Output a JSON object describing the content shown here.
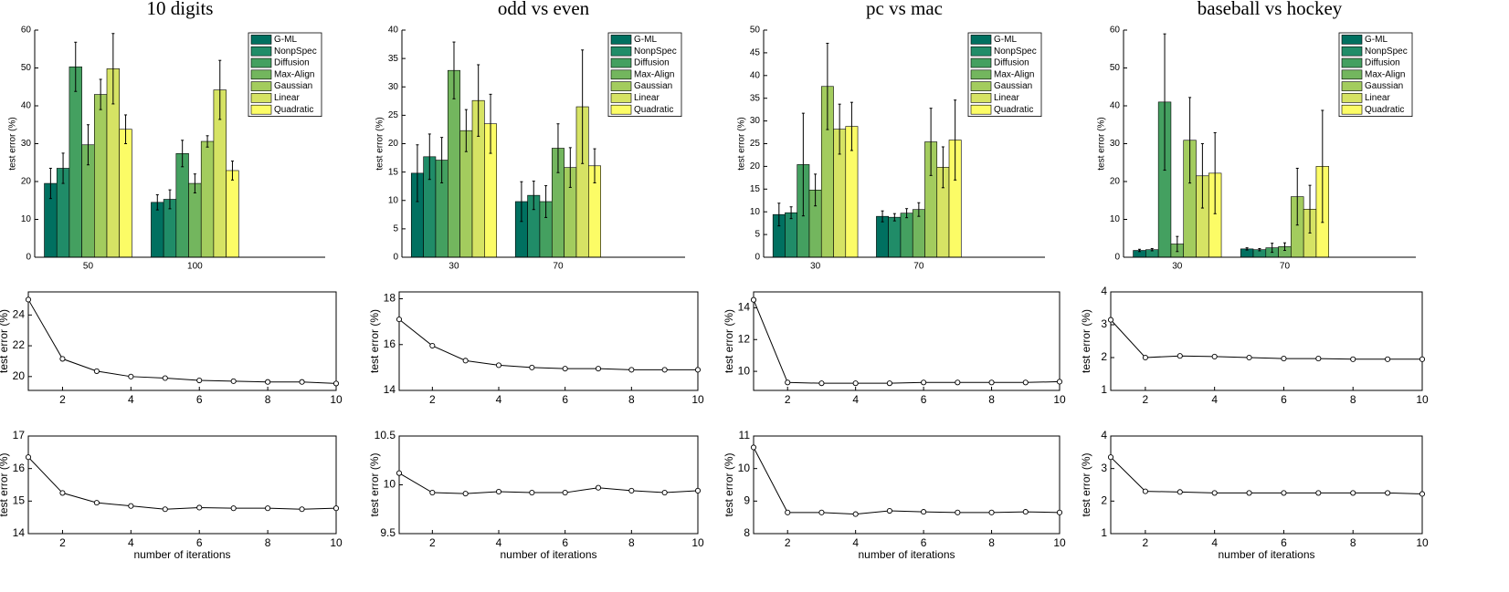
{
  "chart_data": [
    {
      "type": "bar",
      "title": "10 digits",
      "y_label": "test error (%)",
      "categories": [
        "50",
        "100"
      ],
      "ylim": [
        0,
        60
      ],
      "yticks": [
        0,
        10,
        20,
        30,
        40,
        50,
        60
      ],
      "legend": "upper right",
      "series": [
        {
          "name": "G-ML",
          "color": "#007060",
          "values": [
            19.5,
            14.5
          ],
          "errors": [
            4,
            2
          ]
        },
        {
          "name": "NonpSpec",
          "color": "#208c68",
          "values": [
            23.5,
            15.3
          ],
          "errors": [
            4,
            2.5
          ]
        },
        {
          "name": "Diffusion",
          "color": "#44a060",
          "values": [
            50.3,
            27.4
          ],
          "errors": [
            6.5,
            3.5
          ]
        },
        {
          "name": "Max-Align",
          "color": "#73b65e",
          "values": [
            29.7,
            19.5
          ],
          "errors": [
            5.3,
            2.5
          ]
        },
        {
          "name": "Gaussian",
          "color": "#a3cc5e",
          "values": [
            43,
            30.6
          ],
          "errors": [
            4,
            1.5
          ]
        },
        {
          "name": "Linear",
          "color": "#d6e364",
          "values": [
            49.8,
            44.2
          ],
          "errors": [
            9.3,
            7.8
          ]
        },
        {
          "name": "Quadratic",
          "color": "#fcfc66",
          "values": [
            33.8,
            22.9
          ],
          "errors": [
            3.8,
            2.5
          ]
        }
      ]
    },
    {
      "type": "bar",
      "title": "odd vs even",
      "y_label": "test error (%)",
      "categories": [
        "30",
        "70"
      ],
      "ylim": [
        0,
        40
      ],
      "yticks": [
        0,
        5,
        10,
        15,
        20,
        25,
        30,
        35,
        40
      ],
      "legend": "upper right",
      "series": [
        {
          "name": "G-ML",
          "color": "#007060",
          "values": [
            14.8,
            9.8
          ],
          "errors": [
            5,
            3.5
          ]
        },
        {
          "name": "NonpSpec",
          "color": "#208c68",
          "values": [
            17.7,
            10.9
          ],
          "errors": [
            4,
            2.5
          ]
        },
        {
          "name": "Diffusion",
          "color": "#44a060",
          "values": [
            17.1,
            9.8
          ],
          "errors": [
            4,
            2.8
          ]
        },
        {
          "name": "Max-Align",
          "color": "#73b65e",
          "values": [
            32.9,
            19.2
          ],
          "errors": [
            5,
            4.3
          ]
        },
        {
          "name": "Gaussian",
          "color": "#a3cc5e",
          "values": [
            22.3,
            15.8
          ],
          "errors": [
            3.7,
            3.5
          ]
        },
        {
          "name": "Linear",
          "color": "#d6e364",
          "values": [
            27.6,
            26.5
          ],
          "errors": [
            6.3,
            10
          ]
        },
        {
          "name": "Quadratic",
          "color": "#fcfc66",
          "values": [
            23.5,
            16.1
          ],
          "errors": [
            5.2,
            3
          ]
        }
      ]
    },
    {
      "type": "bar",
      "title": "pc vs mac",
      "y_label": "test error (%)",
      "categories": [
        "30",
        "70"
      ],
      "ylim": [
        0,
        50
      ],
      "yticks": [
        0,
        5,
        10,
        15,
        20,
        25,
        30,
        35,
        40,
        45,
        50
      ],
      "legend": "upper right",
      "series": [
        {
          "name": "G-ML",
          "color": "#007060",
          "values": [
            9.4,
            9
          ],
          "errors": [
            2.5,
            1.2
          ]
        },
        {
          "name": "NonpSpec",
          "color": "#208c68",
          "values": [
            9.8,
            8.8
          ],
          "errors": [
            1.3,
            0.8
          ]
        },
        {
          "name": "Diffusion",
          "color": "#44a060",
          "values": [
            20.4,
            9.7
          ],
          "errors": [
            11.3,
            1
          ]
        },
        {
          "name": "Max-Align",
          "color": "#73b65e",
          "values": [
            14.8,
            10.5
          ],
          "errors": [
            3.5,
            1.5
          ]
        },
        {
          "name": "Gaussian",
          "color": "#a3cc5e",
          "values": [
            37.6,
            25.4
          ],
          "errors": [
            9.5,
            7.4
          ]
        },
        {
          "name": "Linear",
          "color": "#d6e364",
          "values": [
            28.2,
            19.8
          ],
          "errors": [
            5.5,
            4.5
          ]
        },
        {
          "name": "Quadratic",
          "color": "#fcfc66",
          "values": [
            28.8,
            25.8
          ],
          "errors": [
            5.3,
            8.8
          ]
        }
      ]
    },
    {
      "type": "bar",
      "title": "baseball vs hockey",
      "y_label": "test error (%)",
      "categories": [
        "30",
        "70"
      ],
      "ylim": [
        0,
        60
      ],
      "yticks": [
        0,
        10,
        20,
        30,
        40,
        50,
        60
      ],
      "legend": "upper right",
      "series": [
        {
          "name": "G-ML",
          "color": "#007060",
          "values": [
            1.8,
            2.2
          ],
          "errors": [
            0.3,
            0.3
          ]
        },
        {
          "name": "NonpSpec",
          "color": "#208c68",
          "values": [
            2,
            2
          ],
          "errors": [
            0.3,
            0.3
          ]
        },
        {
          "name": "Diffusion",
          "color": "#44a060",
          "values": [
            41,
            2.5
          ],
          "errors": [
            18,
            1.2
          ]
        },
        {
          "name": "Max-Align",
          "color": "#73b65e",
          "values": [
            3.5,
            2.8
          ],
          "errors": [
            2,
            1
          ]
        },
        {
          "name": "Gaussian",
          "color": "#a3cc5e",
          "values": [
            30.9,
            16
          ],
          "errors": [
            11.3,
            7.5
          ]
        },
        {
          "name": "Linear",
          "color": "#d6e364",
          "values": [
            21.5,
            12.7
          ],
          "errors": [
            8.5,
            6.3
          ]
        },
        {
          "name": "Quadratic",
          "color": "#fcfc66",
          "values": [
            22.2,
            24
          ],
          "errors": [
            10.7,
            14.8
          ]
        }
      ]
    },
    {
      "type": "line",
      "y_label": "test error (%)",
      "x": [
        1,
        2,
        3,
        4,
        5,
        6,
        7,
        8,
        9,
        10
      ],
      "values": [
        25.0,
        21.15,
        20.35,
        20.0,
        19.9,
        19.75,
        19.7,
        19.65,
        19.65,
        19.55
      ],
      "color": "#000000",
      "marker": "o",
      "xlim": [
        1,
        10
      ],
      "xticks": [
        2,
        4,
        6,
        8,
        10
      ],
      "ylim": [
        19.1,
        25.5
      ],
      "yticks": [
        20,
        22,
        24
      ]
    },
    {
      "type": "line",
      "y_label": "test error (%)",
      "x": [
        1,
        2,
        3,
        4,
        5,
        6,
        7,
        8,
        9,
        10
      ],
      "values": [
        17.1,
        15.95,
        15.3,
        15.1,
        15.0,
        14.95,
        14.95,
        14.9,
        14.9,
        14.9
      ],
      "color": "#000000",
      "marker": "o",
      "xlim": [
        1,
        10
      ],
      "xticks": [
        2,
        4,
        6,
        8,
        10
      ],
      "ylim": [
        14,
        18.3
      ],
      "yticks": [
        14,
        16,
        18
      ]
    },
    {
      "type": "line",
      "y_label": "test error (%)",
      "x": [
        1,
        2,
        3,
        4,
        5,
        6,
        7,
        8,
        9,
        10
      ],
      "values": [
        14.5,
        9.3,
        9.25,
        9.25,
        9.25,
        9.3,
        9.3,
        9.3,
        9.3,
        9.35
      ],
      "color": "#000000",
      "marker": "o",
      "xlim": [
        1,
        10
      ],
      "xticks": [
        2,
        4,
        6,
        8,
        10
      ],
      "ylim": [
        8.8,
        15
      ],
      "yticks": [
        10,
        12,
        14
      ]
    },
    {
      "type": "line",
      "y_label": "test error (%)",
      "x": [
        1,
        2,
        3,
        4,
        5,
        6,
        7,
        8,
        9,
        10
      ],
      "values": [
        3.15,
        2.0,
        2.05,
        2.03,
        2.0,
        1.97,
        1.97,
        1.95,
        1.95,
        1.95
      ],
      "color": "#000000",
      "marker": "o",
      "xlim": [
        1,
        10
      ],
      "xticks": [
        2,
        4,
        6,
        8,
        10
      ],
      "ylim": [
        1,
        4
      ],
      "yticks": [
        1,
        2,
        3,
        4
      ]
    },
    {
      "type": "line",
      "y_label": "test error (%)",
      "x_label": "number of iterations",
      "x": [
        1,
        2,
        3,
        4,
        5,
        6,
        7,
        8,
        9,
        10
      ],
      "values": [
        16.35,
        15.25,
        14.95,
        14.85,
        14.75,
        14.8,
        14.78,
        14.78,
        14.75,
        14.78
      ],
      "color": "#000000",
      "marker": "o",
      "xlim": [
        1,
        10
      ],
      "xticks": [
        2,
        4,
        6,
        8,
        10
      ],
      "ylim": [
        14,
        17
      ],
      "yticks": [
        14,
        15,
        16,
        17
      ]
    },
    {
      "type": "line",
      "y_label": "test error (%)",
      "x_label": "number of iterations",
      "x": [
        1,
        2,
        3,
        4,
        5,
        6,
        7,
        8,
        9,
        10
      ],
      "values": [
        10.12,
        9.92,
        9.91,
        9.93,
        9.92,
        9.92,
        9.97,
        9.94,
        9.92,
        9.94
      ],
      "color": "#000000",
      "marker": "o",
      "xlim": [
        1,
        10
      ],
      "xticks": [
        2,
        4,
        6,
        8,
        10
      ],
      "ylim": [
        9.5,
        10.5
      ],
      "yticks": [
        9.5,
        10,
        10.5
      ]
    },
    {
      "type": "line",
      "y_label": "test error (%)",
      "x_label": "number of iterations",
      "x": [
        1,
        2,
        3,
        4,
        5,
        6,
        7,
        8,
        9,
        10
      ],
      "values": [
        10.65,
        8.65,
        8.65,
        8.6,
        8.7,
        8.67,
        8.65,
        8.65,
        8.67,
        8.65
      ],
      "color": "#000000",
      "marker": "o",
      "xlim": [
        1,
        10
      ],
      "xticks": [
        2,
        4,
        6,
        8,
        10
      ],
      "ylim": [
        8,
        11
      ],
      "yticks": [
        8,
        9,
        10,
        11
      ]
    },
    {
      "type": "line",
      "y_label": "test error (%)",
      "x_label": "number of iterations",
      "x": [
        1,
        2,
        3,
        4,
        5,
        6,
        7,
        8,
        9,
        10
      ],
      "values": [
        3.35,
        2.3,
        2.28,
        2.25,
        2.25,
        2.25,
        2.25,
        2.25,
        2.25,
        2.22
      ],
      "color": "#000000",
      "marker": "o",
      "xlim": [
        1,
        10
      ],
      "xticks": [
        2,
        4,
        6,
        8,
        10
      ],
      "ylim": [
        1,
        4
      ],
      "yticks": [
        1,
        2,
        3,
        4
      ]
    }
  ]
}
